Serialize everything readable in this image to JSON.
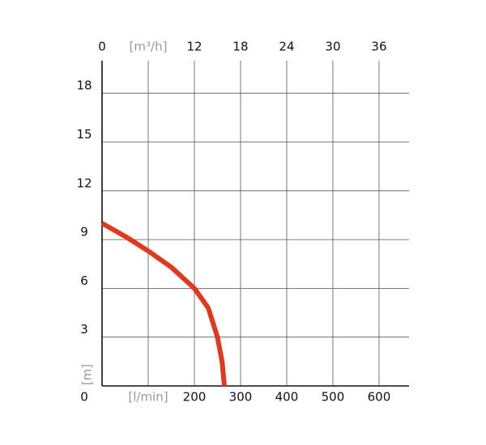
{
  "chart_data": {
    "type": "line",
    "x": [
      0,
      50,
      100,
      150,
      200,
      230,
      250,
      260,
      265
    ],
    "series": [
      {
        "color": "#e0391f",
        "values": [
          10,
          9.2,
          8.3,
          7.3,
          6,
          4.8,
          3,
          1.5,
          0
        ]
      }
    ],
    "xlim": [
      0,
      665
    ],
    "xticks": [
      {
        "value": 100,
        "label": "[l/min]"
      },
      200,
      300,
      400,
      500,
      600
    ],
    "x2lim": [
      0,
      39.9
    ],
    "x2ticks": [
      0,
      {
        "value": 6,
        "label": "[m³/h]"
      },
      12,
      18,
      24,
      30,
      36
    ],
    "ylim": [
      0,
      20
    ],
    "yticks": [
      0,
      3,
      6,
      9,
      12,
      15,
      18
    ],
    "ylabel": "[m]",
    "grid": true
  }
}
